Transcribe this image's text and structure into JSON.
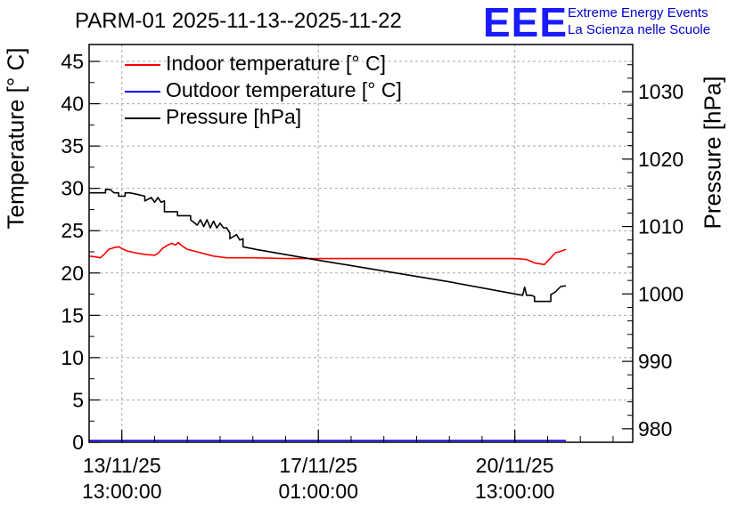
{
  "header": {
    "title": "PARM-01 2025-11-13--2025-11-22",
    "logo_text": "EEE",
    "logo_line1": "Extreme Energy Events",
    "logo_line2": "La Scienza nelle Scuole"
  },
  "colors": {
    "indoor": "#ff0000",
    "outdoor": "#0000ff",
    "pressure": "#000000",
    "logo": "#1a1aff"
  },
  "chart_data": {
    "type": "line",
    "title": "PARM-01 2025-11-13--2025-11-22",
    "xlabel": "",
    "ylabel": "Temperature [° C]",
    "y2label": "Pressure [hPa]",
    "xlim": [
      -0.5,
      7.8
    ],
    "ylim": [
      0,
      47
    ],
    "y2lim": [
      978,
      1037
    ],
    "grid": true,
    "legend_position": "top-left",
    "x_ticks": [
      {
        "x": 0,
        "line1": "13/11/25",
        "line2": "13:00:00"
      },
      {
        "x": 3,
        "line1": "17/11/25",
        "line2": "01:00:00"
      },
      {
        "x": 6,
        "line1": "20/11/25",
        "line2": "13:00:00"
      }
    ],
    "y_ticks": [
      0,
      5,
      10,
      15,
      20,
      25,
      30,
      35,
      40,
      45
    ],
    "y2_ticks": [
      980,
      990,
      1000,
      1010,
      1020,
      1030
    ],
    "series": [
      {
        "name": "Indoor temperature [° C]",
        "axis": "left",
        "color": "#ff0000",
        "x": [
          -0.5,
          -0.4,
          -0.33,
          -0.27,
          -0.2,
          -0.12,
          -0.05,
          0.0,
          0.08,
          0.2,
          0.35,
          0.5,
          0.55,
          0.62,
          0.7,
          0.76,
          0.82,
          0.86,
          0.92,
          1.0,
          1.2,
          1.4,
          1.6,
          2.0,
          2.5,
          3.0,
          4.0,
          5.0,
          6.0,
          6.18,
          6.3,
          6.45,
          6.55,
          6.62,
          6.68,
          6.78
        ],
        "y": [
          22.0,
          21.9,
          21.8,
          22.2,
          22.8,
          23.0,
          23.1,
          22.9,
          22.6,
          22.4,
          22.2,
          22.1,
          22.3,
          22.9,
          23.3,
          23.5,
          23.3,
          23.6,
          23.2,
          22.8,
          22.4,
          22.0,
          21.8,
          21.8,
          21.7,
          21.7,
          21.7,
          21.7,
          21.7,
          21.6,
          21.2,
          21.0,
          21.8,
          22.4,
          22.5,
          22.8
        ]
      },
      {
        "name": "Outdoor temperature [° C]",
        "axis": "left",
        "color": "#0000ff",
        "x": [
          -0.5,
          6.78
        ],
        "y": [
          0.2,
          0.2
        ]
      },
      {
        "name": "Pressure [hPa]",
        "axis": "right",
        "color": "#000000",
        "x": [
          -0.5,
          -0.25,
          -0.25,
          -0.18,
          -0.12,
          -0.05,
          -0.05,
          0.05,
          0.05,
          0.12,
          0.22,
          0.35,
          0.35,
          0.45,
          0.5,
          0.55,
          0.6,
          0.65,
          0.65,
          0.85,
          0.85,
          1.05,
          1.05,
          1.15,
          1.2,
          1.25,
          1.3,
          1.35,
          1.4,
          1.45,
          1.5,
          1.55,
          1.6,
          1.65,
          1.65,
          1.75,
          1.8,
          1.85,
          1.85,
          2.05,
          3.0,
          4.0,
          5.0,
          6.0,
          6.12,
          6.15,
          6.18,
          6.25,
          6.3,
          6.3,
          6.55,
          6.55,
          6.62,
          6.7,
          6.78
        ],
        "y": [
          1015.0,
          1015.0,
          1015.5,
          1015.5,
          1015.0,
          1015.0,
          1014.5,
          1014.5,
          1015.0,
          1015.0,
          1014.8,
          1014.5,
          1013.8,
          1014.3,
          1013.6,
          1014.3,
          1013.6,
          1013.8,
          1012.2,
          1012.2,
          1011.6,
          1011.6,
          1011.0,
          1010.2,
          1011.0,
          1010.0,
          1011.0,
          1009.8,
          1010.8,
          1009.8,
          1010.5,
          1009.8,
          1009.8,
          1009.0,
          1008.2,
          1008.8,
          1008.0,
          1008.2,
          1007.0,
          1006.6,
          1005.0,
          1003.4,
          1001.8,
          1000.0,
          999.8,
          1001.0,
          999.8,
          999.8,
          999.6,
          998.9,
          998.9,
          999.9,
          1000.3,
          1001.1,
          1001.2
        ]
      }
    ]
  }
}
